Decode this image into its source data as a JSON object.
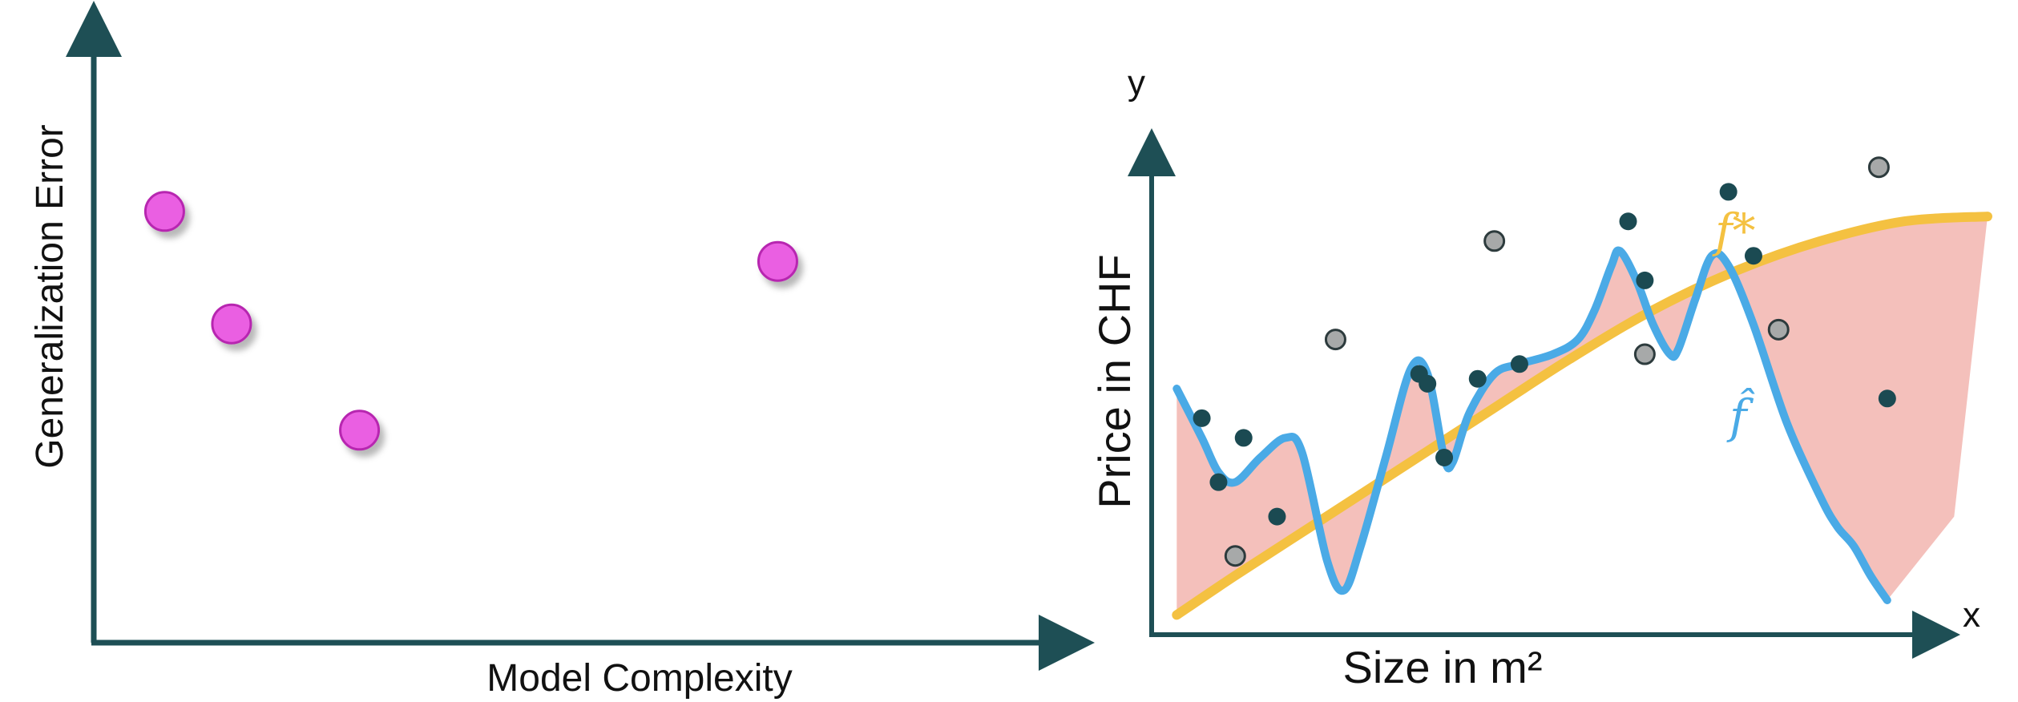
{
  "chart_data": [
    {
      "type": "scatter",
      "xlabel": "Model Complexity",
      "ylabel": "Generalization Error",
      "xlim": [
        0,
        100
      ],
      "ylim": [
        0,
        100
      ],
      "grid": false,
      "points": [
        {
          "x": 7.2,
          "y": 69
        },
        {
          "x": 14.0,
          "y": 51
        },
        {
          "x": 27.0,
          "y": 34
        },
        {
          "x": 69.5,
          "y": 61
        }
      ],
      "point_color": "#ea5ee2",
      "point_stroke": "#b726b0"
    },
    {
      "type": "line",
      "xlabel": "Size in m²",
      "ylabel": "Price in CHF",
      "x_axis_name": "x",
      "y_axis_name": "y",
      "xlim": [
        0,
        100
      ],
      "ylim": [
        0,
        100
      ],
      "grid": false,
      "series": [
        {
          "name": "f*",
          "color": "#f4c141",
          "points": [
            [
              3,
              4
            ],
            [
              10,
              12
            ],
            [
              20,
              23
            ],
            [
              30,
              34
            ],
            [
              40,
              45
            ],
            [
              50,
              56
            ],
            [
              60,
              66
            ],
            [
              70,
              74
            ],
            [
              80,
              80
            ],
            [
              90,
              84
            ],
            [
              100,
              85
            ]
          ]
        },
        {
          "name": "f̂",
          "color": "#4aaae6",
          "points": [
            [
              3,
              50
            ],
            [
              6,
              40
            ],
            [
              8,
              33
            ],
            [
              10,
              31
            ],
            [
              13,
              36
            ],
            [
              16,
              40
            ],
            [
              18,
              37
            ],
            [
              21,
              15
            ],
            [
              23,
              9
            ],
            [
              25,
              18
            ],
            [
              28,
              36
            ],
            [
              31,
              54
            ],
            [
              33,
              53
            ],
            [
              35,
              36
            ],
            [
              36,
              35
            ],
            [
              38,
              45
            ],
            [
              41,
              53
            ],
            [
              44,
              55
            ],
            [
              48,
              57
            ],
            [
              51,
              60
            ],
            [
              53,
              66
            ],
            [
              55,
              75
            ],
            [
              56,
              78
            ],
            [
              58,
              72
            ],
            [
              60,
              63
            ],
            [
              62,
              57
            ],
            [
              63,
              58
            ],
            [
              65,
              68
            ],
            [
              67,
              77
            ],
            [
              69,
              75
            ],
            [
              72,
              63
            ],
            [
              76,
              43
            ],
            [
              80,
              28
            ],
            [
              82,
              22
            ],
            [
              84,
              18
            ],
            [
              86,
              12
            ],
            [
              88,
              7
            ]
          ]
        }
      ],
      "fill_between": {
        "color": "#f4c0bb",
        "upper_left_start": [
          3,
          51
        ],
        "lower_right_end": [
          96,
          24
        ]
      },
      "scatter_dark": {
        "color": "#1b4a52",
        "points": [
          [
            6,
            44
          ],
          [
            8,
            31
          ],
          [
            11,
            40
          ],
          [
            15,
            24
          ],
          [
            32,
            53
          ],
          [
            33,
            51
          ],
          [
            35,
            36
          ],
          [
            39,
            52
          ],
          [
            44,
            55
          ],
          [
            57,
            84
          ],
          [
            59,
            72
          ],
          [
            69,
            90
          ],
          [
            72,
            77
          ],
          [
            88,
            48
          ]
        ]
      },
      "scatter_light": {
        "color": "#a7a9a9",
        "points": [
          [
            10,
            16
          ],
          [
            22,
            60
          ],
          [
            41,
            80
          ],
          [
            59,
            57
          ],
          [
            75,
            62
          ],
          [
            87,
            95
          ]
        ]
      }
    }
  ]
}
